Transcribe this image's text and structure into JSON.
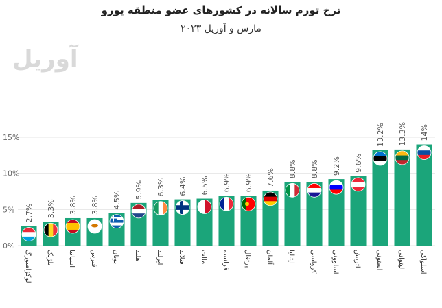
{
  "chart_data": {
    "type": "bar",
    "title": "نرخ تورم سالانه در کشورهای عضو منطقه یورو",
    "subtitle": "مارس و آوریل ۲۰۲۳",
    "watermark": "آوریل",
    "ylim": [
      0,
      15
    ],
    "yticks": [
      0,
      5,
      10,
      15
    ],
    "ytick_labels": [
      "0%",
      "5%",
      "10%",
      "15%"
    ],
    "bar_color": "#1ba57a",
    "categories": [
      "لوکزامبورگ",
      "بلژیک",
      "اسپانیا",
      "قبرس",
      "یونان",
      "هلند",
      "ایرلند",
      "فنلاند",
      "مالت",
      "فرانسه",
      "پرتغال",
      "آلمان",
      "ایتالیا",
      "کرواسی",
      "اسلوونی",
      "اتریش",
      "استونی",
      "لیتوانی",
      "اسلواکی"
    ],
    "values": [
      2.7,
      3.3,
      3.8,
      3.8,
      4.5,
      5.9,
      6.3,
      6.4,
      6.5,
      6.9,
      6.9,
      7.6,
      8.8,
      8.8,
      9.2,
      9.6,
      13.2,
      13.3,
      14
    ],
    "value_labels": [
      "2.7%",
      "3.3%",
      "3.8%",
      "3.8%",
      "4.5%",
      "5.9%",
      "6.3%",
      "6.4%",
      "6.5%",
      "6.9%",
      "6.9%",
      "7.6%",
      "8.8%",
      "8.8%",
      "9.2%",
      "9.6%",
      "13.2%",
      "13.3%",
      "14%"
    ],
    "flag_icons": [
      "luxembourg-flag",
      "belgium-flag",
      "spain-flag",
      "cyprus-flag",
      "greece-flag",
      "netherlands-flag",
      "ireland-flag",
      "finland-flag",
      "malta-flag",
      "france-flag",
      "portugal-flag",
      "germany-flag",
      "italy-flag",
      "croatia-flag",
      "slovenia-flag",
      "austria-flag",
      "estonia-flag",
      "lithuania-flag",
      "slovakia-flag"
    ]
  }
}
